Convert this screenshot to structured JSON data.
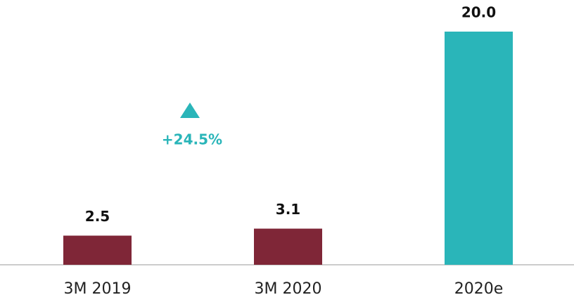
{
  "chart_data": {
    "type": "bar",
    "categories": [
      "3M 2019",
      "3M 2020",
      "2020e"
    ],
    "values": [
      2.5,
      3.1,
      20
    ],
    "value_labels": [
      "2.5",
      "3.1",
      "20.0"
    ],
    "colors": [
      "#7f2637",
      "#7f2637",
      "#2ab5b9"
    ],
    "ylim": [
      0,
      20
    ],
    "annotation": {
      "text": "+24.5%",
      "color": "#2ab5b9"
    }
  }
}
